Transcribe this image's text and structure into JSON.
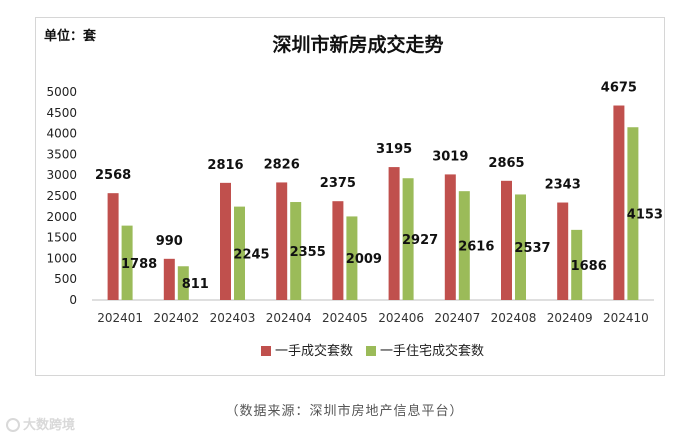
{
  "unit_label": "单位：套",
  "source_note": "（数据来源：深圳市房地产信息平台）",
  "watermark": "大数跨境",
  "colors": {
    "series1": "#c0504d",
    "series2": "#9bbb59"
  },
  "chart_data": {
    "type": "bar",
    "title": "深圳市新房成交走势",
    "xlabel": "",
    "ylabel": "",
    "ylim": [
      0,
      5000
    ],
    "yticks": [
      0,
      500,
      1000,
      1500,
      2000,
      2500,
      3000,
      3500,
      4000,
      4500,
      5000
    ],
    "grid": false,
    "legend_position": "bottom",
    "categories": [
      "202401",
      "202402",
      "202403",
      "202404",
      "202405",
      "202406",
      "202407",
      "202408",
      "202409",
      "202410"
    ],
    "series": [
      {
        "name": "一手成交套数",
        "values": [
          2568,
          990,
          2816,
          2826,
          2375,
          3195,
          3019,
          2865,
          2343,
          4675
        ]
      },
      {
        "name": "一手住宅成交套数",
        "values": [
          1788,
          811,
          2245,
          2355,
          2009,
          2927,
          2616,
          2537,
          1686,
          4153
        ]
      }
    ]
  }
}
